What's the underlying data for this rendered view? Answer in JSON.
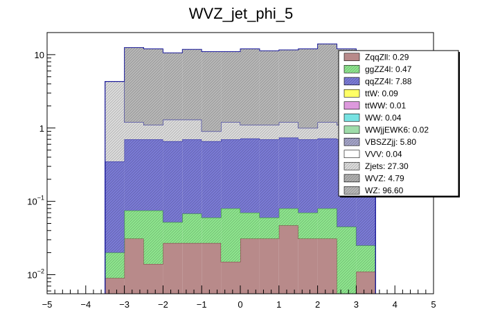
{
  "chart_data": {
    "type": "bar",
    "title": "WVZ_jet_phi_5",
    "xlabel": "",
    "ylabel": "",
    "xlim": [
      -5,
      5
    ],
    "ylim": [
      0.0055,
      20
    ],
    "yscale": "log",
    "stacked": true,
    "x_ticks": [
      "−5",
      "−4",
      "−3",
      "−2",
      "−1",
      "0",
      "1",
      "2",
      "3",
      "4",
      "5"
    ],
    "y_ticks": [
      {
        "value": 0.01,
        "base": "10",
        "exp": "−2"
      },
      {
        "value": 0.1,
        "base": "10",
        "exp": "−1"
      },
      {
        "value": 1,
        "base": "1",
        "exp": ""
      },
      {
        "value": 10,
        "base": "10",
        "exp": ""
      }
    ],
    "bin_edges": [
      -3.5,
      -3.0,
      -2.5,
      -2.0,
      -1.5,
      -1.0,
      -0.5,
      0.0,
      0.5,
      1.0,
      1.5,
      2.0,
      2.5,
      3.0,
      3.5
    ],
    "series_order_bottom_to_top": [
      "ZqqZll",
      "ggZZ4l",
      "qqZZ4l",
      "ttW",
      "ttWW",
      "WW",
      "WWjjEWK6",
      "VBSZZjj",
      "VVV",
      "Zjets",
      "WVZ",
      "WZ"
    ],
    "cumulative_tops": {
      "ZqqZll": [
        0.009,
        0.031,
        0.014,
        0.027,
        0.027,
        0.027,
        0.015,
        0.031,
        0.031,
        0.047,
        0.031,
        0.031,
        0.001,
        0.011
      ],
      "ggZZ4l": [
        0.02,
        0.075,
        0.075,
        0.052,
        0.068,
        0.06,
        0.08,
        0.07,
        0.06,
        0.08,
        0.07,
        0.08,
        0.045,
        0.025
      ],
      "qqZZ4l": [
        0.35,
        0.7,
        0.7,
        0.66,
        0.7,
        0.66,
        0.7,
        0.72,
        0.7,
        0.74,
        0.7,
        0.72,
        0.7,
        0.3
      ],
      "Zjets": [
        4.3,
        1.2,
        1.1,
        1.3,
        1.3,
        0.9,
        1.2,
        1.1,
        1.1,
        1.2,
        1.0,
        1.2,
        1.1,
        1.0
      ],
      "WZ": [
        4.3,
        12.5,
        12.0,
        10.6,
        11.8,
        11.0,
        11.0,
        12.0,
        11.3,
        11.6,
        12.0,
        14.0,
        12.0,
        4.3
      ]
    },
    "series": [
      {
        "name": "ZqqZll",
        "yield": "0.29",
        "color": "#b88a8a",
        "hatch": false
      },
      {
        "name": "ggZZ4l",
        "yield": "0.47",
        "color": "#8ee68e",
        "hatch": true
      },
      {
        "name": "qqZZ4l",
        "yield": "7.88",
        "color": "#7b7bd6",
        "hatch": true
      },
      {
        "name": "ttW",
        "yield": "0.09",
        "color": "#ffff66",
        "hatch": false
      },
      {
        "name": "ttWW",
        "yield": "0.01",
        "color": "#dd99dd",
        "hatch": false
      },
      {
        "name": "WW",
        "yield": "0.04",
        "color": "#77e2e2",
        "hatch": false
      },
      {
        "name": "WWjjEWK6",
        "yield": "0.02",
        "color": "#9fdcaa",
        "hatch": false
      },
      {
        "name": "VBSZZjj",
        "yield": "5.80",
        "color": "#a4a4c8",
        "hatch": true
      },
      {
        "name": "VVV",
        "yield": "0.04",
        "color": "#ffffff",
        "hatch": false
      },
      {
        "name": "Zjets",
        "yield": "27.30",
        "color": "#dcdcdc",
        "hatch": true
      },
      {
        "name": "WVZ",
        "yield": "4.79",
        "color": "#b0b0b0",
        "hatch": true
      },
      {
        "name": "WZ",
        "yield": "96.60",
        "color": "#b8b8b8",
        "hatch": true
      }
    ],
    "legend_position": "top-right",
    "grid": false
  }
}
